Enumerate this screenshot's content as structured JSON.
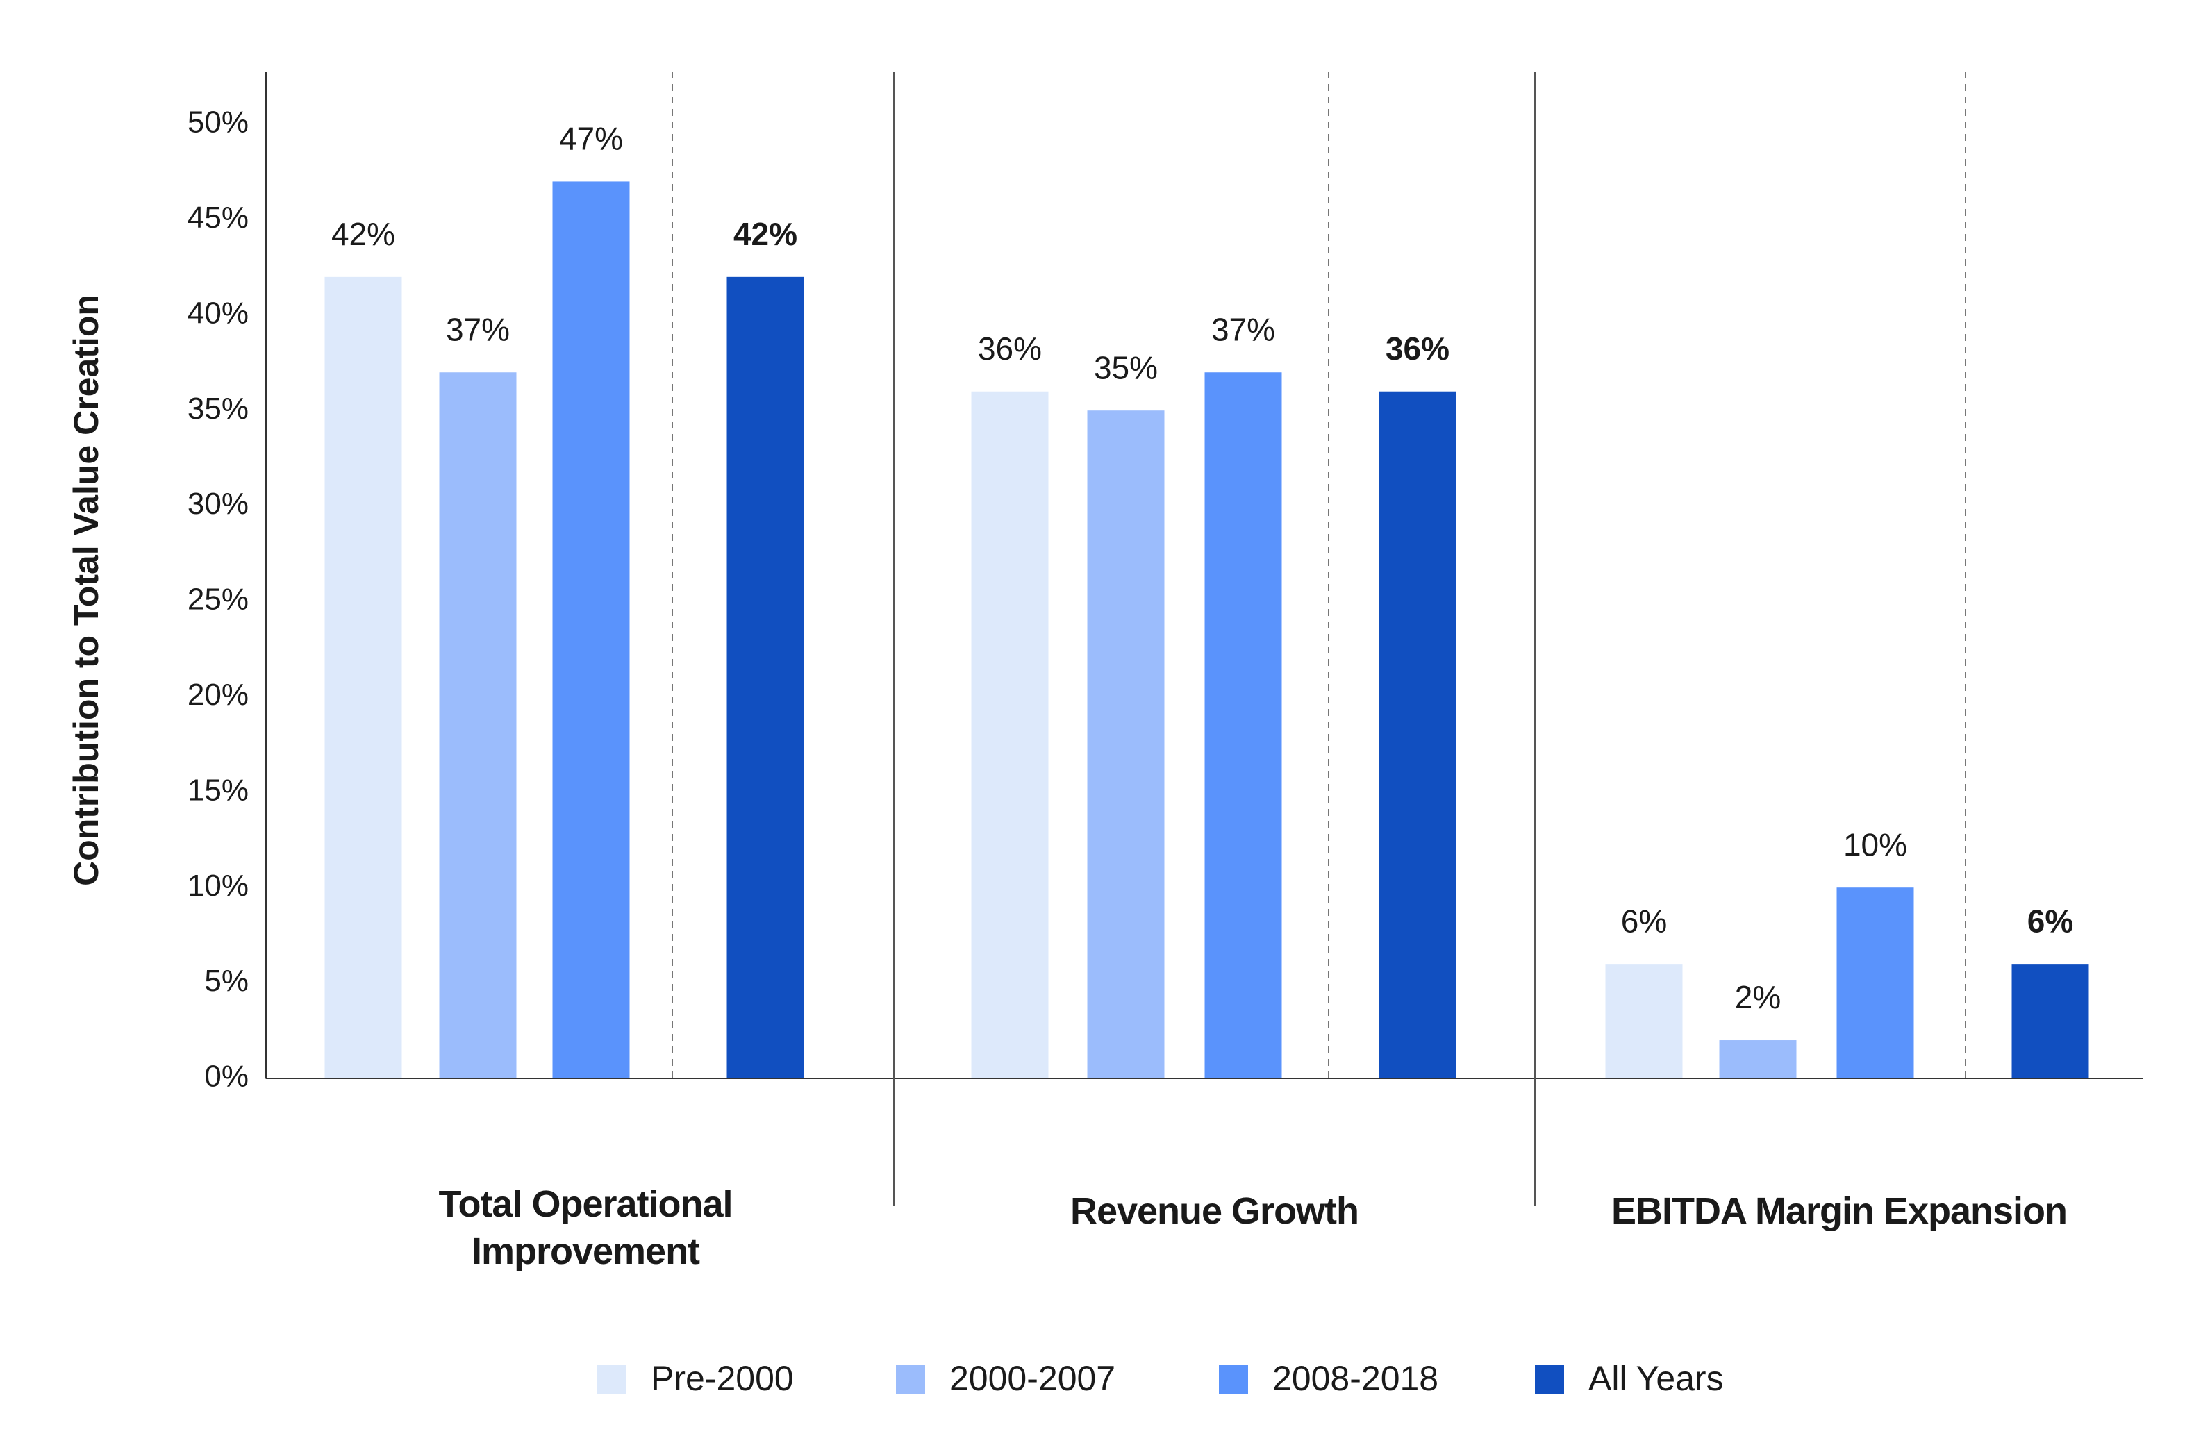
{
  "chart_data": {
    "type": "bar",
    "ylabel": "Contribution to Total Value Creation",
    "categories": [
      "Total Operational Improvement",
      "Revenue Growth",
      "EBITDA Margin Expansion"
    ],
    "series": [
      {
        "name": "Pre-2000",
        "color": "#dde9fb",
        "values": [
          42,
          36,
          6
        ],
        "value_labels": [
          "42%",
          "36%",
          "6%"
        ]
      },
      {
        "name": "2000-2007",
        "color": "#9bbcfc",
        "values": [
          37,
          35,
          2
        ],
        "value_labels": [
          "37%",
          "35%",
          "2%"
        ]
      },
      {
        "name": "2008-2018",
        "color": "#5a93fc",
        "values": [
          47,
          37,
          10
        ],
        "value_labels": [
          "47%",
          "37%",
          "10%"
        ]
      },
      {
        "name": "All Years",
        "color": "#114fc0",
        "values": [
          42,
          36,
          6
        ],
        "value_labels": [
          "42%",
          "36%",
          "6%"
        ]
      }
    ],
    "ylim": [
      0,
      50
    ],
    "yticks": [
      {
        "value": 0,
        "label": "0%"
      },
      {
        "value": 5,
        "label": "5%"
      },
      {
        "value": 10,
        "label": "10%"
      },
      {
        "value": 15,
        "label": "15%"
      },
      {
        "value": 20,
        "label": "20%"
      },
      {
        "value": 25,
        "label": "25%"
      },
      {
        "value": 30,
        "label": "30%"
      },
      {
        "value": 35,
        "label": "35%"
      },
      {
        "value": 40,
        "label": "40%"
      },
      {
        "value": 45,
        "label": "45%"
      },
      {
        "value": 50,
        "label": "50%"
      }
    ],
    "legend": "bottom"
  }
}
